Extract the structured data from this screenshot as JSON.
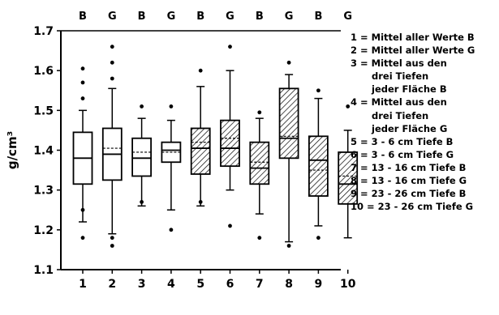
{
  "chart_data": {
    "type": "box",
    "ylabel": "g/cm³",
    "ylim": [
      1.1,
      1.7
    ],
    "yticks": [
      "1.1",
      "1.2",
      "1.3",
      "1.4",
      "1.5",
      "1.6",
      "1.7"
    ],
    "categories": [
      "1",
      "2",
      "3",
      "4",
      "5",
      "6",
      "7",
      "8",
      "9",
      "10"
    ],
    "group_labels": [
      "B",
      "G",
      "B",
      "G",
      "B",
      "G",
      "B",
      "G",
      "B",
      "G"
    ],
    "boxes": [
      {
        "whisker_low": 1.22,
        "q1": 1.315,
        "median": 1.38,
        "mean": 1.38,
        "q3": 1.445,
        "whisker_high": 1.5,
        "outliers": [
          1.18,
          1.25,
          1.53,
          1.57,
          1.605
        ],
        "hatched": false
      },
      {
        "whisker_low": 1.19,
        "q1": 1.325,
        "median": 1.39,
        "mean": 1.405,
        "q3": 1.455,
        "whisker_high": 1.555,
        "outliers": [
          1.16,
          1.18,
          1.58,
          1.62,
          1.66
        ],
        "hatched": false
      },
      {
        "whisker_low": 1.26,
        "q1": 1.335,
        "median": 1.38,
        "mean": 1.395,
        "q3": 1.43,
        "whisker_high": 1.48,
        "outliers": [
          1.27,
          1.51
        ],
        "hatched": false
      },
      {
        "whisker_low": 1.25,
        "q1": 1.37,
        "median": 1.4,
        "mean": 1.395,
        "q3": 1.42,
        "whisker_high": 1.475,
        "outliers": [
          1.2,
          1.51
        ],
        "hatched": false
      },
      {
        "whisker_low": 1.26,
        "q1": 1.34,
        "median": 1.405,
        "mean": 1.42,
        "q3": 1.455,
        "whisker_high": 1.56,
        "outliers": [
          1.27,
          1.6
        ],
        "hatched": true
      },
      {
        "whisker_low": 1.3,
        "q1": 1.36,
        "median": 1.405,
        "mean": 1.43,
        "q3": 1.475,
        "whisker_high": 1.6,
        "outliers": [
          1.21,
          1.66
        ],
        "hatched": true
      },
      {
        "whisker_low": 1.24,
        "q1": 1.315,
        "median": 1.355,
        "mean": 1.37,
        "q3": 1.42,
        "whisker_high": 1.48,
        "outliers": [
          1.18,
          1.495
        ],
        "hatched": true
      },
      {
        "whisker_low": 1.17,
        "q1": 1.38,
        "median": 1.43,
        "mean": 1.435,
        "q3": 1.555,
        "whisker_high": 1.59,
        "outliers": [
          1.16,
          1.62
        ],
        "hatched": true
      },
      {
        "whisker_low": 1.21,
        "q1": 1.285,
        "median": 1.375,
        "mean": 1.35,
        "q3": 1.435,
        "whisker_high": 1.53,
        "outliers": [
          1.18,
          1.55
        ],
        "hatched": true
      },
      {
        "whisker_low": 1.18,
        "q1": 1.265,
        "median": 1.315,
        "mean": 1.335,
        "q3": 1.395,
        "whisker_high": 1.45,
        "outliers": [
          1.51
        ],
        "hatched": true
      }
    ],
    "legend": [
      "1 = Mittel aller Werte B",
      "2 = Mittel aller Werte G",
      "3 = Mittel aus den",
      "drei Tiefen",
      "jeder Fläche B",
      "4 = Mittel aus den",
      "drei Tiefen",
      "jeder Fläche G",
      "5 = 3 - 6 cm Tiefe B",
      "6 = 3 - 6 cm Tiefe G",
      "7 = 13 - 16 cm Tiefe B",
      "8 = 13 - 16 cm Tiefe G",
      "9 = 23 - 26 cm Tiefe B",
      "10 = 23 - 26 cm Tiefe G"
    ],
    "legend_indent": [
      false,
      false,
      false,
      true,
      true,
      false,
      true,
      true,
      false,
      false,
      false,
      false,
      false,
      false
    ],
    "grid": false,
    "legend_position": "right"
  }
}
